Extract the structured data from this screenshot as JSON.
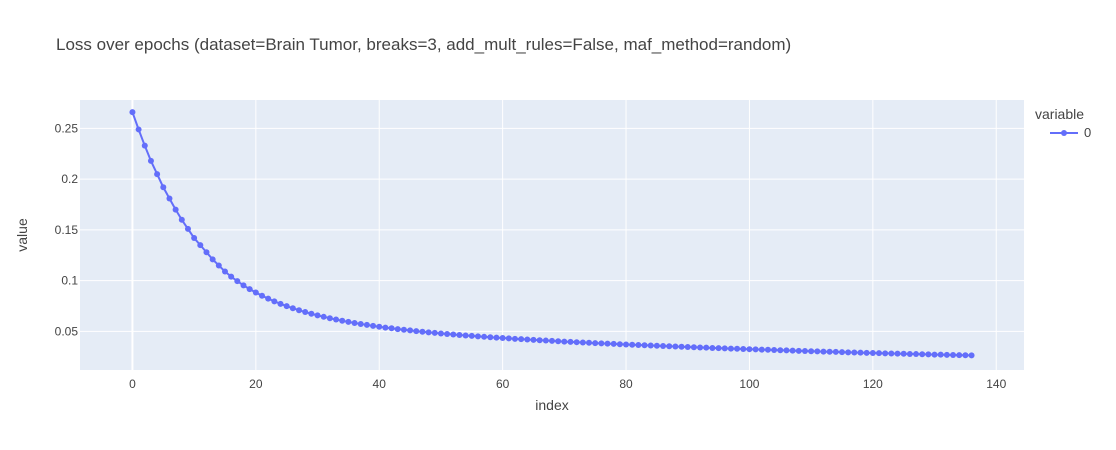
{
  "chart_data": {
    "type": "line",
    "mode": "lines+markers",
    "title": "Loss over epochs (dataset=Brain Tumor, breaks=3, add_mult_rules=False, maf_method=random)",
    "xlabel": "index",
    "ylabel": "value",
    "xlim": [
      -8.5,
      144.5
    ],
    "ylim": [
      0.012,
      0.278
    ],
    "x_ticks": [
      0,
      20,
      40,
      60,
      80,
      100,
      120,
      140
    ],
    "x_tick_labels": [
      "0",
      "20",
      "40",
      "60",
      "80",
      "100",
      "120",
      "140"
    ],
    "y_ticks": [
      0.05,
      0.1,
      0.15,
      0.2,
      0.25
    ],
    "y_tick_labels": [
      "0.05",
      "0.1",
      "0.15",
      "0.2",
      "0.25"
    ],
    "grid": true,
    "legend": {
      "title": "variable",
      "placement": "right-top"
    },
    "series": [
      {
        "name": "0",
        "color": "#636efa",
        "x": [
          0,
          1,
          2,
          3,
          4,
          5,
          6,
          7,
          8,
          9,
          10,
          11,
          12,
          13,
          14,
          15,
          16,
          17,
          18,
          19,
          20,
          21,
          22,
          23,
          24,
          25,
          26,
          27,
          28,
          29,
          30,
          31,
          32,
          33,
          34,
          35,
          36,
          37,
          38,
          39,
          40,
          41,
          42,
          43,
          44,
          45,
          46,
          47,
          48,
          49,
          50,
          51,
          52,
          53,
          54,
          55,
          56,
          57,
          58,
          59,
          60,
          61,
          62,
          63,
          64,
          65,
          66,
          67,
          68,
          69,
          70,
          71,
          72,
          73,
          74,
          75,
          76,
          77,
          78,
          79,
          80,
          81,
          82,
          83,
          84,
          85,
          86,
          87,
          88,
          89,
          90,
          91,
          92,
          93,
          94,
          95,
          96,
          97,
          98,
          99,
          100,
          101,
          102,
          103,
          104,
          105,
          106,
          107,
          108,
          109,
          110,
          111,
          112,
          113,
          114,
          115,
          116,
          117,
          118,
          119,
          120,
          121,
          122,
          123,
          124,
          125,
          126,
          127,
          128,
          129,
          130,
          131,
          132,
          133,
          134,
          135,
          136
        ],
        "values": [
          0.266,
          0.249,
          0.233,
          0.218,
          0.205,
          0.192,
          0.181,
          0.17,
          0.16,
          0.151,
          0.142,
          0.135,
          0.128,
          0.121,
          0.115,
          0.109,
          0.104,
          0.0995,
          0.0954,
          0.0917,
          0.0883,
          0.0852,
          0.0823,
          0.0796,
          0.0772,
          0.0749,
          0.0728,
          0.0709,
          0.0691,
          0.0674,
          0.0658,
          0.0644,
          0.063,
          0.0617,
          0.0605,
          0.0594,
          0.0583,
          0.0573,
          0.0564,
          0.0555,
          0.0546,
          0.0538,
          0.0531,
          0.0523,
          0.0516,
          0.051,
          0.0503,
          0.0497,
          0.0491,
          0.0486,
          0.048,
          0.0475,
          0.047,
          0.0465,
          0.046,
          0.0456,
          0.0451,
          0.0447,
          0.0443,
          0.0439,
          0.0435,
          0.0431,
          0.0427,
          0.0424,
          0.042,
          0.0417,
          0.0413,
          0.041,
          0.0407,
          0.0403,
          0.04,
          0.0397,
          0.0394,
          0.0391,
          0.0388,
          0.0385,
          0.0382,
          0.038,
          0.0377,
          0.0374,
          0.0371,
          0.0369,
          0.0366,
          0.0364,
          0.0361,
          0.0359,
          0.0356,
          0.0354,
          0.0351,
          0.0349,
          0.0347,
          0.0344,
          0.0342,
          0.034,
          0.0337,
          0.0335,
          0.0333,
          0.0331,
          0.0329,
          0.0327,
          0.0325,
          0.0323,
          0.0321,
          0.0319,
          0.0317,
          0.0315,
          0.0313,
          0.0311,
          0.0309,
          0.0307,
          0.0305,
          0.0303,
          0.0301,
          0.03,
          0.0298,
          0.0296,
          0.0294,
          0.0292,
          0.0291,
          0.0289,
          0.0287,
          0.0286,
          0.0284,
          0.0283,
          0.0281,
          0.028,
          0.0278,
          0.0277,
          0.0275,
          0.0274,
          0.0272,
          0.0271,
          0.0269,
          0.0268,
          0.0266,
          0.0265,
          0.0264
        ]
      }
    ]
  }
}
